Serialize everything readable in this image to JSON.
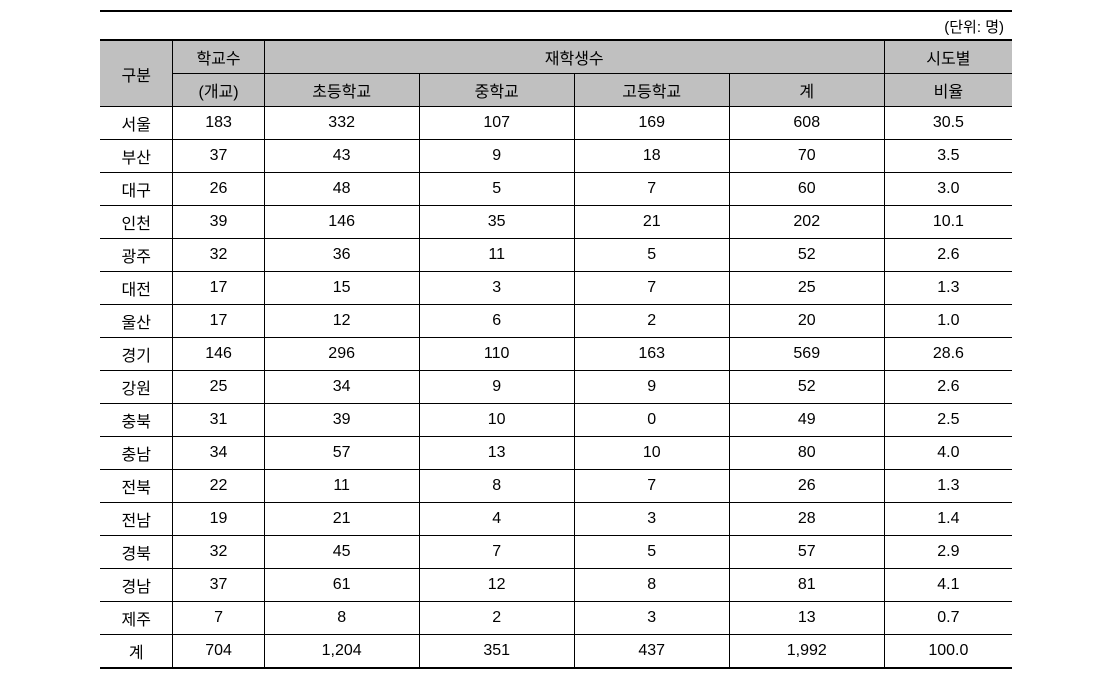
{
  "unit_label": "(단위: 명)",
  "headers": {
    "region": "구분",
    "schools": "학교수",
    "schools_unit": "(개교)",
    "students": "재학생수",
    "elementary": "초등학교",
    "middle": "중학교",
    "high": "고등학교",
    "subtotal": "계",
    "ratio": "시도별",
    "ratio_sub": "비율"
  },
  "rows": [
    {
      "region": "서울",
      "schools": "183",
      "elem": "332",
      "mid": "107",
      "high": "169",
      "total": "608",
      "ratio": "30.5"
    },
    {
      "region": "부산",
      "schools": "37",
      "elem": "43",
      "mid": "9",
      "high": "18",
      "total": "70",
      "ratio": "3.5"
    },
    {
      "region": "대구",
      "schools": "26",
      "elem": "48",
      "mid": "5",
      "high": "7",
      "total": "60",
      "ratio": "3.0"
    },
    {
      "region": "인천",
      "schools": "39",
      "elem": "146",
      "mid": "35",
      "high": "21",
      "total": "202",
      "ratio": "10.1"
    },
    {
      "region": "광주",
      "schools": "32",
      "elem": "36",
      "mid": "11",
      "high": "5",
      "total": "52",
      "ratio": "2.6"
    },
    {
      "region": "대전",
      "schools": "17",
      "elem": "15",
      "mid": "3",
      "high": "7",
      "total": "25",
      "ratio": "1.3"
    },
    {
      "region": "울산",
      "schools": "17",
      "elem": "12",
      "mid": "6",
      "high": "2",
      "total": "20",
      "ratio": "1.0"
    },
    {
      "region": "경기",
      "schools": "146",
      "elem": "296",
      "mid": "110",
      "high": "163",
      "total": "569",
      "ratio": "28.6"
    },
    {
      "region": "강원",
      "schools": "25",
      "elem": "34",
      "mid": "9",
      "high": "9",
      "total": "52",
      "ratio": "2.6"
    },
    {
      "region": "충북",
      "schools": "31",
      "elem": "39",
      "mid": "10",
      "high": "0",
      "total": "49",
      "ratio": "2.5"
    },
    {
      "region": "충남",
      "schools": "34",
      "elem": "57",
      "mid": "13",
      "high": "10",
      "total": "80",
      "ratio": "4.0"
    },
    {
      "region": "전북",
      "schools": "22",
      "elem": "11",
      "mid": "8",
      "high": "7",
      "total": "26",
      "ratio": "1.3"
    },
    {
      "region": "전남",
      "schools": "19",
      "elem": "21",
      "mid": "4",
      "high": "3",
      "total": "28",
      "ratio": "1.4"
    },
    {
      "region": "경북",
      "schools": "32",
      "elem": "45",
      "mid": "7",
      "high": "5",
      "total": "57",
      "ratio": "2.9"
    },
    {
      "region": "경남",
      "schools": "37",
      "elem": "61",
      "mid": "12",
      "high": "8",
      "total": "81",
      "ratio": "4.1"
    },
    {
      "region": "제주",
      "schools": "7",
      "elem": "8",
      "mid": "2",
      "high": "3",
      "total": "13",
      "ratio": "0.7"
    },
    {
      "region": "계",
      "schools": "704",
      "elem": "1,204",
      "mid": "351",
      "high": "437",
      "total": "1,992",
      "ratio": "100.0"
    }
  ],
  "table_style": {
    "header_bg": "#c0c0c0",
    "border_color": "#000000",
    "background": "#ffffff",
    "font_size": 16,
    "column_widths_pct": [
      8,
      10,
      17,
      17,
      17,
      17,
      14
    ]
  }
}
